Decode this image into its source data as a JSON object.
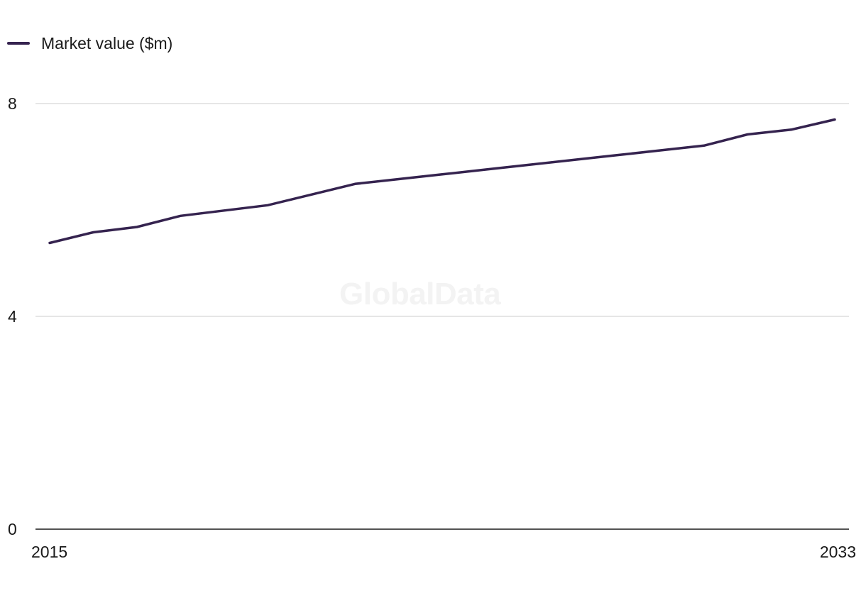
{
  "chart_data": {
    "type": "line",
    "title": "",
    "xlabel": "",
    "ylabel": "",
    "x": [
      2015,
      2016,
      2017,
      2018,
      2019,
      2020,
      2021,
      2022,
      2023,
      2024,
      2025,
      2026,
      2027,
      2028,
      2029,
      2030,
      2031,
      2032,
      2033
    ],
    "series": [
      {
        "name": "Market value ($m)",
        "color": "#35234f",
        "values": [
          5.38,
          5.58,
          5.68,
          5.89,
          5.99,
          6.09,
          6.29,
          6.49,
          6.58,
          6.67,
          6.76,
          6.85,
          6.94,
          7.03,
          7.12,
          7.21,
          7.42,
          7.51,
          7.7
        ]
      }
    ],
    "ylim": [
      0,
      8
    ],
    "y_ticks": [
      "0",
      "4",
      "8"
    ],
    "x_tick_labels": [
      "2015",
      "2033"
    ],
    "grid": true,
    "legend_position": "top-left",
    "watermark": "GlobalData"
  }
}
